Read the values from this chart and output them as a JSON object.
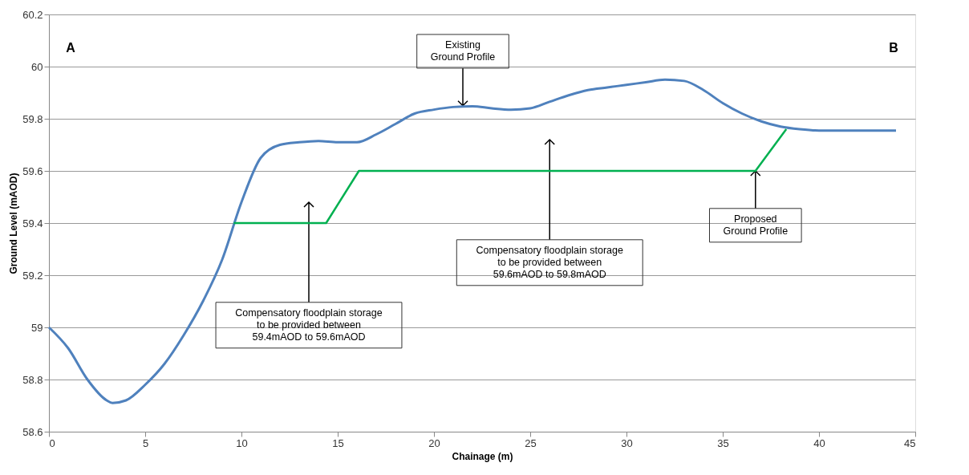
{
  "chart_data": {
    "type": "line",
    "xlabel": "Chainage (m)",
    "ylabel": "Ground Level (mAOD)",
    "xlim": [
      0,
      45
    ],
    "xticks": [
      0,
      5,
      10,
      15,
      20,
      25,
      30,
      35,
      40,
      45
    ],
    "ylim": [
      58.6,
      60.2
    ],
    "yticks": [
      58.6,
      58.8,
      59,
      59.2,
      59.4,
      59.6,
      59.8,
      60,
      60.2
    ],
    "grid": "y",
    "marker": "none",
    "line_style": "solid",
    "series": [
      {
        "color": "#4f81bd",
        "x": [
          0,
          1,
          2,
          3,
          3.3,
          4,
          5,
          6,
          7,
          8,
          9,
          10,
          11,
          12,
          13,
          14,
          15,
          16,
          17,
          18,
          19,
          20,
          21,
          22,
          23,
          24,
          25,
          26,
          27,
          28,
          29,
          30,
          31,
          32,
          33,
          34,
          35,
          36,
          37,
          38,
          39,
          40,
          42,
          44
        ],
        "values": [
          59.0,
          58.92,
          58.8,
          58.72,
          58.71,
          58.72,
          58.78,
          58.86,
          58.97,
          59.1,
          59.26,
          59.48,
          59.65,
          59.7,
          59.71,
          59.715,
          59.71,
          59.71,
          59.74,
          59.78,
          59.82,
          59.835,
          59.845,
          59.848,
          59.84,
          59.835,
          59.84,
          59.865,
          59.89,
          59.91,
          59.92,
          59.93,
          59.94,
          59.95,
          59.945,
          59.91,
          59.86,
          59.82,
          59.79,
          59.77,
          59.76,
          59.755,
          59.755,
          59.755
        ]
      },
      {
        "color": "#00b050",
        "x": [
          9.6,
          14.4,
          16.1,
          36.7,
          38.3
        ],
        "values": [
          59.4,
          59.4,
          59.6,
          59.6,
          59.76
        ]
      }
    ],
    "annotations": [
      "A",
      "B",
      {
        "text": "Existing\nGround Profile",
        "x": 21.5,
        "y": 59.85
      },
      "Compensatory floodplain storage\nto be provided between\n59.4mAOD to 59.6mAOD",
      "Compensatory floodplain storage\nto be provided between\n59.6mAOD to 59.8mAOD",
      {
        "text": "Proposed\nGround Profile",
        "x": 36.7,
        "y": 59.6
      }
    ]
  }
}
